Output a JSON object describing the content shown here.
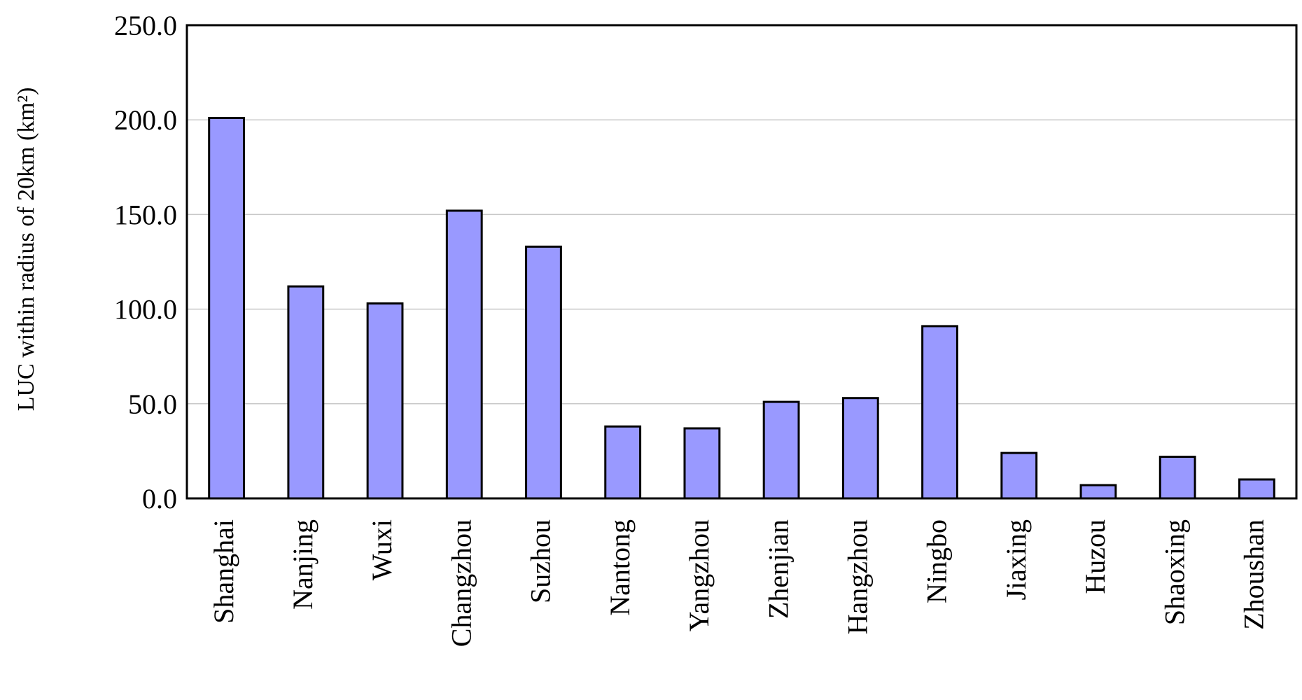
{
  "chart_data": {
    "type": "bar",
    "y_label": "LUC within radius of 20km (km²)",
    "categories": [
      "Shanghai",
      "Nanjing",
      "Wuxi",
      "Changzhou",
      "Suzhou",
      "Nantong",
      "Yangzhou",
      "Zhenjian",
      "Hangzhou",
      "Ningbo",
      "Jiaxing",
      "Huzou",
      "Shaoxing",
      "Zhoushan"
    ],
    "values": [
      201,
      112,
      103,
      152,
      133,
      38,
      37,
      51,
      53,
      91,
      24,
      7,
      22,
      10
    ],
    "color": "#9999ff",
    "ylim": [
      0,
      250
    ],
    "yticks": [
      {
        "value": 0,
        "label": "0.0"
      },
      {
        "value": 50,
        "label": "50.0"
      },
      {
        "value": 100,
        "label": "100.0"
      },
      {
        "value": 150,
        "label": "150.0"
      },
      {
        "value": 200,
        "label": "200.0"
      },
      {
        "value": 250,
        "label": "250.0"
      }
    ],
    "grid": true
  }
}
